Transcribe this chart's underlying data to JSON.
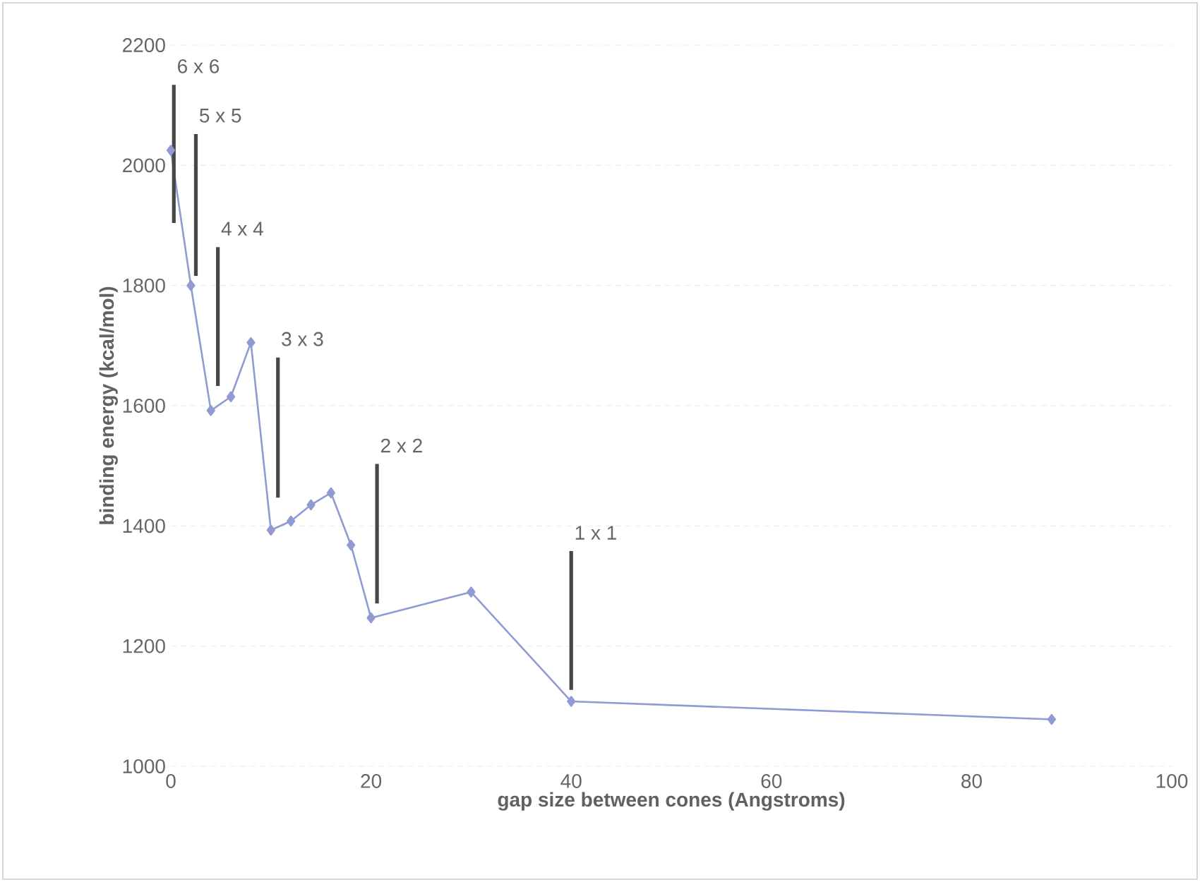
{
  "chart_data": {
    "type": "line",
    "xlabel": "gap size between cones (Angstroms)",
    "ylabel": "binding energy (kcal/mol)",
    "x": [
      0,
      2,
      4,
      6,
      8,
      10,
      12,
      14,
      16,
      18,
      20,
      30,
      40,
      88
    ],
    "series": [
      {
        "color": "#8f9bd2",
        "values": [
          2025,
          1800,
          1592,
          1615,
          1705,
          1393,
          1408,
          1435,
          1455,
          1368,
          1247,
          1290,
          1108,
          1078
        ]
      },
      {
        "color": "#474747",
        "marker": "none",
        "x": [
          0.3,
          0.3
        ],
        "values": [
          1904,
          2134
        ]
      },
      {
        "color": "#474747",
        "marker": "none",
        "x": [
          2.5,
          2.5
        ],
        "values": [
          1816,
          2052
        ]
      },
      {
        "color": "#474747",
        "marker": "none",
        "x": [
          4.7,
          4.7
        ],
        "values": [
          1633,
          1864
        ]
      },
      {
        "color": "#474747",
        "marker": "none",
        "x": [
          10.7,
          10.7
        ],
        "values": [
          1447,
          1680
        ]
      },
      {
        "color": "#474747",
        "marker": "none",
        "x": [
          20.6,
          20.6
        ],
        "values": [
          1271,
          1503
        ]
      },
      {
        "color": "#474747",
        "marker": "none",
        "x": [
          40,
          40
        ],
        "values": [
          1127,
          1358
        ]
      }
    ],
    "xlim": [
      0,
      100
    ],
    "xticks": [
      0,
      20,
      40,
      60,
      80,
      100
    ],
    "ylim": [
      1000,
      2200
    ],
    "yticks": [
      1000,
      1200,
      1400,
      1600,
      1800,
      2000,
      2200
    ],
    "grid": "y",
    "marker": "diamond",
    "line_style": "solid",
    "annotations": [
      {
        "text": "6 x 6",
        "x": 0.3,
        "y": 2134
      },
      {
        "text": "5 x 5",
        "x": 2.5,
        "y": 2052
      },
      {
        "text": "4 x 4",
        "x": 4.7,
        "y": 1864
      },
      {
        "text": "3 x 3",
        "x": 10.7,
        "y": 1680
      },
      {
        "text": "2 x 2",
        "x": 20.6,
        "y": 1503
      },
      {
        "text": "1 x 1",
        "x": 40,
        "y": 1358
      }
    ]
  }
}
